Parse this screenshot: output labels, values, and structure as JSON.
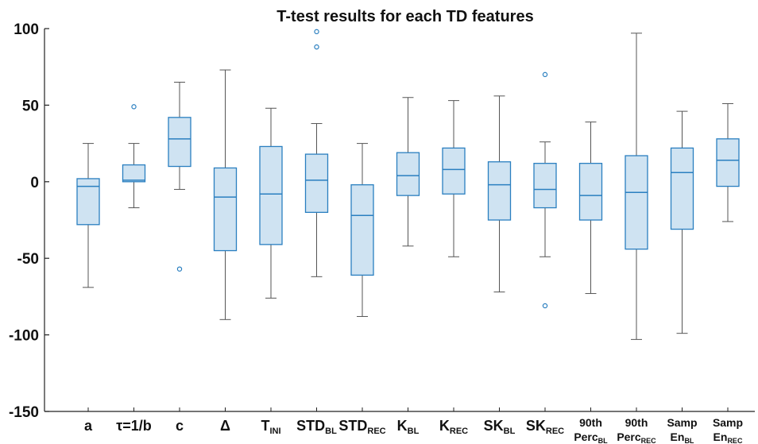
{
  "chart_data": {
    "type": "box",
    "title": "T-test results for each TD features",
    "ylim": [
      -150,
      100
    ],
    "yticks": [
      100,
      50,
      0,
      -50,
      -100,
      -150
    ],
    "ytick_labels": [
      "100",
      "50",
      "0",
      "-50",
      "-100",
      "-150"
    ],
    "grid": false,
    "box_color": "#cfe3f2",
    "edge_color": "#2a7fc0",
    "whisker_color": "#555555",
    "categories": [
      {
        "main": "a",
        "sub": "",
        "line2": "",
        "line2sub": ""
      },
      {
        "main": "τ=1/b",
        "sub": "",
        "line2": "",
        "line2sub": ""
      },
      {
        "main": "c",
        "sub": "",
        "line2": "",
        "line2sub": ""
      },
      {
        "main": "Δ",
        "sub": "",
        "line2": "",
        "line2sub": ""
      },
      {
        "main": "T",
        "sub": "INI",
        "line2": "",
        "line2sub": ""
      },
      {
        "main": "STD",
        "sub": "BL",
        "line2": "",
        "line2sub": ""
      },
      {
        "main": "STD",
        "sub": "REC",
        "line2": "",
        "line2sub": ""
      },
      {
        "main": "K",
        "sub": "BL",
        "line2": "",
        "line2sub": ""
      },
      {
        "main": "K",
        "sub": "REC",
        "line2": "",
        "line2sub": ""
      },
      {
        "main": "SK",
        "sub": "BL",
        "line2": "",
        "line2sub": ""
      },
      {
        "main": "SK",
        "sub": "REC",
        "line2": "",
        "line2sub": ""
      },
      {
        "main": "90th",
        "sub": "",
        "line2": "Perc",
        "line2sub": "BL"
      },
      {
        "main": "90th",
        "sub": "",
        "line2": "Perc",
        "line2sub": "REC"
      },
      {
        "main": "Samp",
        "sub": "",
        "line2": "En",
        "line2sub": "BL"
      },
      {
        "main": "Samp",
        "sub": "",
        "line2": "En",
        "line2sub": "REC"
      }
    ],
    "boxes": [
      {
        "whislo": -69,
        "q1": -28,
        "med": -3,
        "q3": 2,
        "whishi": 25,
        "fliers": []
      },
      {
        "whislo": -17,
        "q1": 0,
        "med": 1,
        "q3": 11,
        "whishi": 25,
        "fliers": [
          49
        ]
      },
      {
        "whislo": -5,
        "q1": 10,
        "med": 28,
        "q3": 42,
        "whishi": 65,
        "fliers": [
          -57
        ]
      },
      {
        "whislo": -90,
        "q1": -45,
        "med": -10,
        "q3": 9,
        "whishi": 73,
        "fliers": []
      },
      {
        "whislo": -76,
        "q1": -41,
        "med": -8,
        "q3": 23,
        "whishi": 48,
        "fliers": []
      },
      {
        "whislo": -62,
        "q1": -20,
        "med": 1,
        "q3": 18,
        "whishi": 38,
        "fliers": [
          88,
          98
        ]
      },
      {
        "whislo": -88,
        "q1": -61,
        "med": -22,
        "q3": -2,
        "whishi": 25,
        "fliers": []
      },
      {
        "whislo": -42,
        "q1": -9,
        "med": 4,
        "q3": 19,
        "whishi": 55,
        "fliers": []
      },
      {
        "whislo": -49,
        "q1": -8,
        "med": 8,
        "q3": 22,
        "whishi": 53,
        "fliers": []
      },
      {
        "whislo": -72,
        "q1": -25,
        "med": -2,
        "q3": 13,
        "whishi": 56,
        "fliers": []
      },
      {
        "whislo": -49,
        "q1": -17,
        "med": -5,
        "q3": 12,
        "whishi": 26,
        "fliers": [
          70,
          -81
        ]
      },
      {
        "whislo": -73,
        "q1": -25,
        "med": -9,
        "q3": 12,
        "whishi": 39,
        "fliers": []
      },
      {
        "whislo": -103,
        "q1": -44,
        "med": -7,
        "q3": 17,
        "whishi": 97,
        "fliers": []
      },
      {
        "whislo": -99,
        "q1": -31,
        "med": 6,
        "q3": 22,
        "whishi": 46,
        "fliers": []
      },
      {
        "whislo": -26,
        "q1": -3,
        "med": 14,
        "q3": 28,
        "whishi": 51,
        "fliers": []
      }
    ]
  }
}
